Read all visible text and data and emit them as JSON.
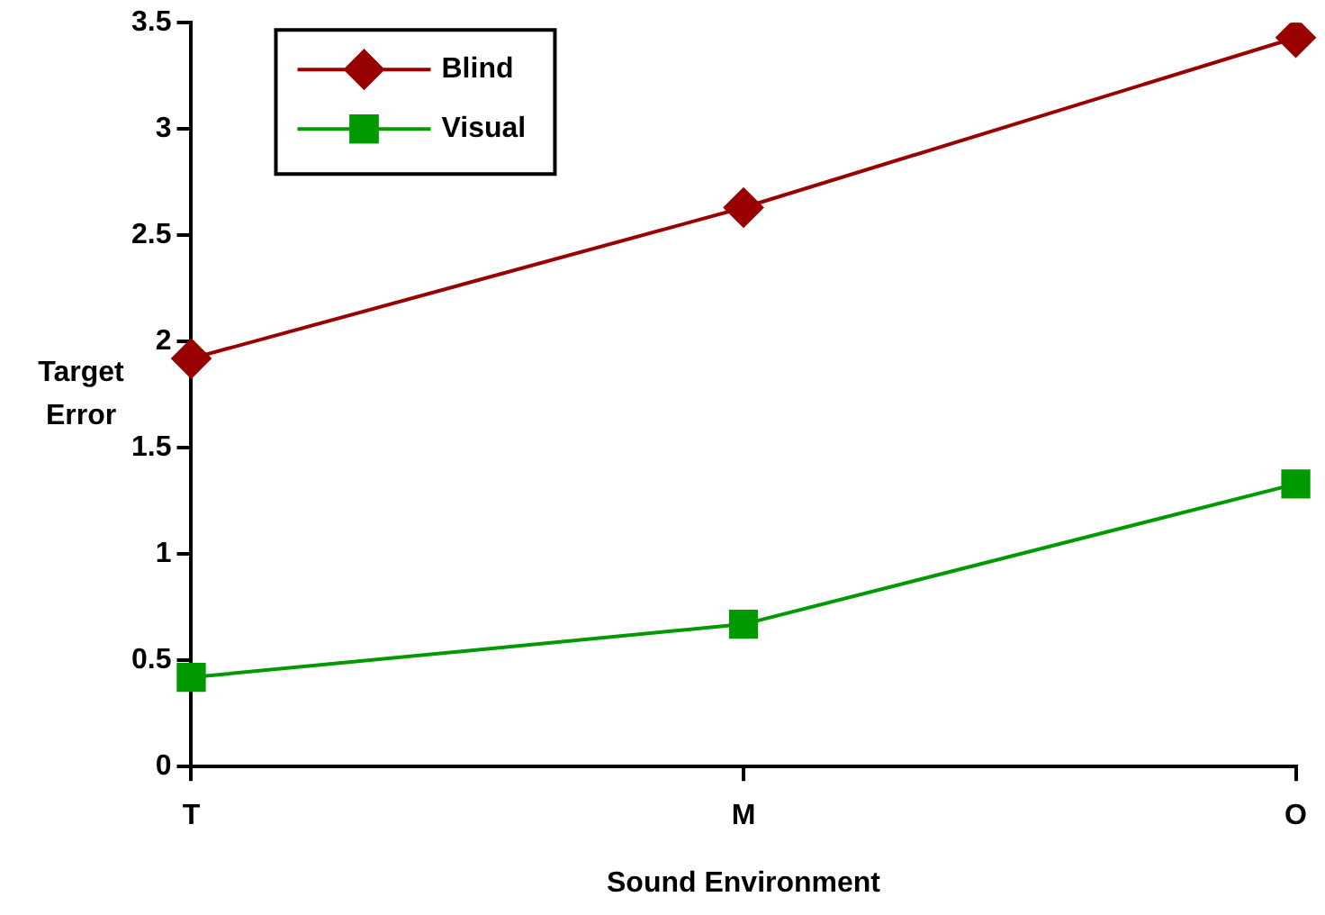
{
  "chart_data": {
    "type": "line",
    "xlabel": "Sound Environment",
    "ylabel": "Target Error",
    "categories": [
      "T",
      "M",
      "O"
    ],
    "series": [
      {
        "name": "Blind",
        "color": "#990000",
        "marker": "diamond",
        "values": [
          1.92,
          2.63,
          3.43
        ]
      },
      {
        "name": "Visual",
        "color": "#009900",
        "marker": "square",
        "values": [
          0.42,
          0.67,
          1.33
        ]
      }
    ],
    "ylim": [
      0,
      3.5
    ],
    "yticks": [
      0,
      0.5,
      1,
      1.5,
      2,
      2.5,
      3,
      3.5
    ],
    "grid": false,
    "legend": "top left"
  }
}
